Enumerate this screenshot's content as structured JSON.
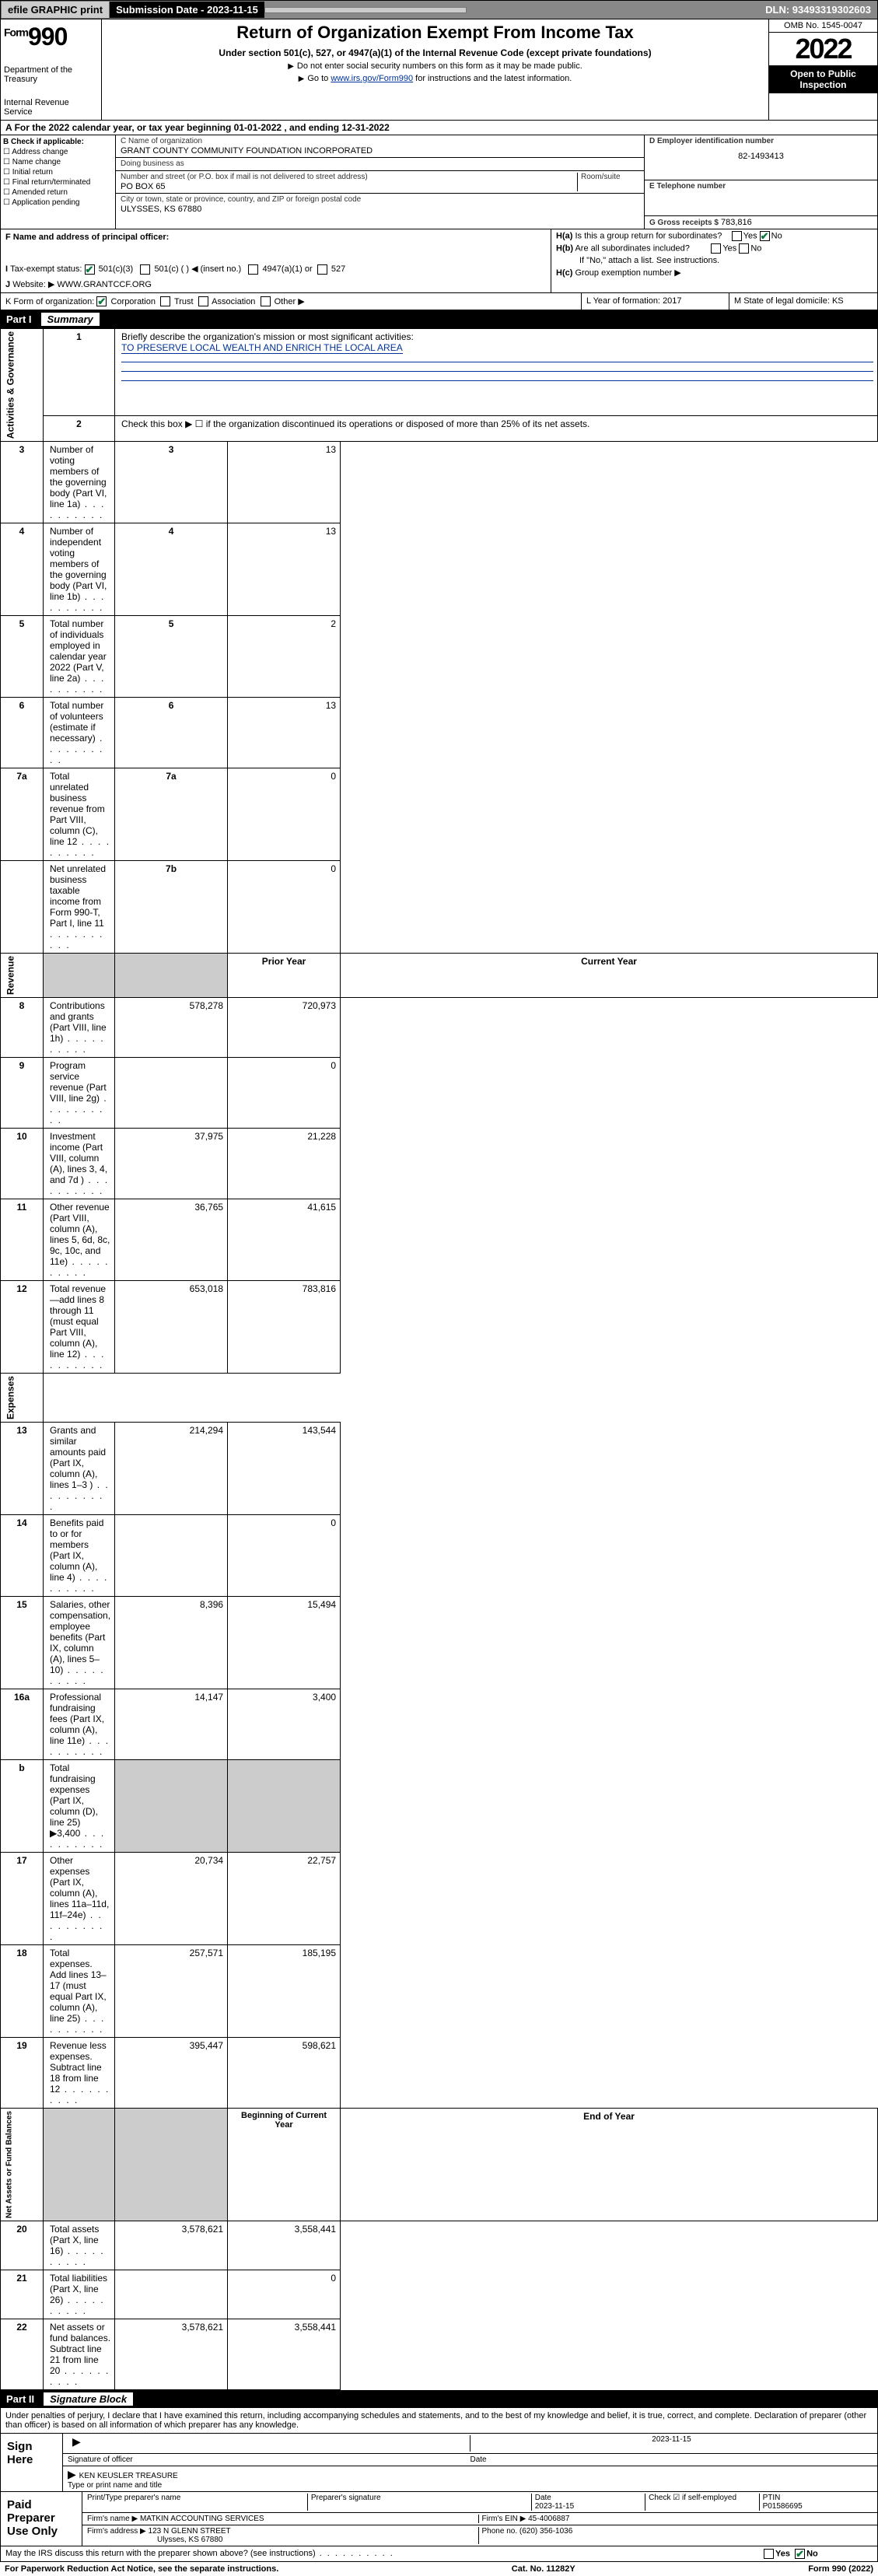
{
  "top": {
    "efile": "efile GRAPHIC print",
    "subDate": "Submission Date - 2023-11-15",
    "dln": "DLN: 93493319302603"
  },
  "header": {
    "formWord": "Form",
    "formNum": "990",
    "dept": "Department of the Treasury",
    "irs": "Internal Revenue Service",
    "title": "Return of Organization Exempt From Income Tax",
    "sub": "Under section 501(c), 527, or 4947(a)(1) of the Internal Revenue Code (except private foundations)",
    "note1": "Do not enter social security numbers on this form as it may be made public.",
    "note2a": "Go to ",
    "note2link": "www.irs.gov/Form990",
    "note2b": " for instructions and the latest information.",
    "omb": "OMB No. 1545-0047",
    "year": "2022",
    "open": "Open to Public Inspection"
  },
  "A": {
    "text": "For the 2022 calendar year, or tax year beginning 01-01-2022    , and ending 12-31-2022"
  },
  "B": {
    "hdr": "B Check if applicable:",
    "opts": [
      "Address change",
      "Name change",
      "Initial return",
      "Final return/terminated",
      "Amended return",
      "Application pending"
    ]
  },
  "C": {
    "nameLbl": "C Name of organization",
    "name": "GRANT COUNTY COMMUNITY FOUNDATION INCORPORATED",
    "dbaLbl": "Doing business as",
    "dba": "",
    "addrLbl": "Number and street (or P.O. box if mail is not delivered to street address)",
    "roomLbl": "Room/suite",
    "addr": "PO BOX 65",
    "cityLbl": "City or town, state or province, country, and ZIP or foreign postal code",
    "city": "ULYSSES, KS  67880"
  },
  "D": {
    "lbl": "D Employer identification number",
    "val": "82-1493413"
  },
  "E": {
    "lbl": "E Telephone number",
    "val": ""
  },
  "G": {
    "lbl": "G Gross receipts $",
    "val": "783,816"
  },
  "F": {
    "lbl": "F  Name and address of principal officer:",
    "val": ""
  },
  "H": {
    "a": "Is this a group return for subordinates?",
    "b": "Are all subordinates included?",
    "bnote": "If \"No,\" attach a list. See instructions.",
    "c": "Group exemption number ▶",
    "yes": "Yes",
    "no": "No"
  },
  "I": {
    "lbl": "Tax-exempt status:",
    "opts": [
      "501(c)(3)",
      "501(c) (  ) ◀ (insert no.)",
      "4947(a)(1) or",
      "527"
    ],
    "checked": 0
  },
  "J": {
    "lbl": "Website: ▶",
    "val": "WWW.GRANTCCF.ORG"
  },
  "K": {
    "lbl": "K Form of organization:",
    "opts": [
      "Corporation",
      "Trust",
      "Association",
      "Other ▶"
    ],
    "checked": 0
  },
  "L": {
    "lbl": "L Year of formation:",
    "val": "2017"
  },
  "M": {
    "lbl": "M State of legal domicile:",
    "val": "KS"
  },
  "partI": {
    "num": "Part I",
    "title": "Summary"
  },
  "s1": {
    "q1lbl": "Briefly describe the organization's mission or most significant activities:",
    "q1": "TO PRESERVE LOCAL WEALTH AND ENRICH THE LOCAL AREA",
    "q2": "Check this box ▶ ☐  if the organization discontinued its operations or disposed of more than 25% of its net assets.",
    "rows": [
      {
        "n": "3",
        "d": "Number of voting members of the governing body (Part VI, line 1a)",
        "a": "3",
        "v": "13"
      },
      {
        "n": "4",
        "d": "Number of independent voting members of the governing body (Part VI, line 1b)",
        "a": "4",
        "v": "13"
      },
      {
        "n": "5",
        "d": "Total number of individuals employed in calendar year 2022 (Part V, line 2a)",
        "a": "5",
        "v": "2"
      },
      {
        "n": "6",
        "d": "Total number of volunteers (estimate if necessary)",
        "a": "6",
        "v": "13"
      },
      {
        "n": "7a",
        "d": "Total unrelated business revenue from Part VIII, column (C), line 12",
        "a": "7a",
        "v": "0"
      },
      {
        "n": "",
        "d": "Net unrelated business taxable income from Form 990-T, Part I, line 11",
        "a": "7b",
        "v": "0"
      }
    ],
    "vert": "Activities & Governance"
  },
  "s2": {
    "hdrP": "Prior Year",
    "hdrC": "Current Year",
    "rows": [
      {
        "n": "8",
        "d": "Contributions and grants (Part VIII, line 1h)",
        "p": "578,278",
        "c": "720,973"
      },
      {
        "n": "9",
        "d": "Program service revenue (Part VIII, line 2g)",
        "p": "",
        "c": "0"
      },
      {
        "n": "10",
        "d": "Investment income (Part VIII, column (A), lines 3, 4, and 7d )",
        "p": "37,975",
        "c": "21,228"
      },
      {
        "n": "11",
        "d": "Other revenue (Part VIII, column (A), lines 5, 6d, 8c, 9c, 10c, and 11e)",
        "p": "36,765",
        "c": "41,615"
      },
      {
        "n": "12",
        "d": "Total revenue—add lines 8 through 11 (must equal Part VIII, column (A), line 12)",
        "p": "653,018",
        "c": "783,816"
      }
    ],
    "vert": "Revenue"
  },
  "s3": {
    "rows": [
      {
        "n": "13",
        "d": "Grants and similar amounts paid (Part IX, column (A), lines 1–3 )",
        "p": "214,294",
        "c": "143,544"
      },
      {
        "n": "14",
        "d": "Benefits paid to or for members (Part IX, column (A), line 4)",
        "p": "",
        "c": "0"
      },
      {
        "n": "15",
        "d": "Salaries, other compensation, employee benefits (Part IX, column (A), lines 5–10)",
        "p": "8,396",
        "c": "15,494"
      },
      {
        "n": "16a",
        "d": "Professional fundraising fees (Part IX, column (A), line 11e)",
        "p": "14,147",
        "c": "3,400"
      },
      {
        "n": "b",
        "d": "Total fundraising expenses (Part IX, column (D), line 25) ▶3,400",
        "p": "SHADE",
        "c": "SHADE"
      },
      {
        "n": "17",
        "d": "Other expenses (Part IX, column (A), lines 11a–11d, 11f–24e)",
        "p": "20,734",
        "c": "22,757"
      },
      {
        "n": "18",
        "d": "Total expenses. Add lines 13–17 (must equal Part IX, column (A), line 25)",
        "p": "257,571",
        "c": "185,195"
      },
      {
        "n": "19",
        "d": "Revenue less expenses. Subtract line 18 from line 12",
        "p": "395,447",
        "c": "598,621"
      }
    ],
    "vert": "Expenses"
  },
  "s4": {
    "hdrP": "Beginning of Current Year",
    "hdrC": "End of Year",
    "rows": [
      {
        "n": "20",
        "d": "Total assets (Part X, line 16)",
        "p": "3,578,621",
        "c": "3,558,441"
      },
      {
        "n": "21",
        "d": "Total liabilities (Part X, line 26)",
        "p": "",
        "c": "0"
      },
      {
        "n": "22",
        "d": "Net assets or fund balances. Subtract line 21 from line 20",
        "p": "3,578,621",
        "c": "3,558,441"
      }
    ],
    "vert": "Net Assets or Fund Balances"
  },
  "partII": {
    "num": "Part II",
    "title": "Signature Block"
  },
  "decl": "Under penalties of perjury, I declare that I have examined this return, including accompanying schedules and statements, and to the best of my knowledge and belief, it is true, correct, and complete. Declaration of preparer (other than officer) is based on all information of which preparer has any knowledge.",
  "sign": {
    "here": "Sign Here",
    "sigOf": "Signature of officer",
    "date": "Date",
    "dateVal": "2023-11-15",
    "name": "KEN KEUSLER  TREASURE",
    "nameLbl": "Type or print name and title"
  },
  "prep": {
    "title": "Paid Preparer Use Only",
    "c1": "Print/Type preparer's name",
    "c2": "Preparer's signature",
    "c3": "Date",
    "c3v": "2023-11-15",
    "c4": "Check ☑ if self-employed",
    "c5": "PTIN",
    "c5v": "P01586695",
    "firmLbl": "Firm's name   ▶",
    "firm": "MATKIN ACCOUNTING SERVICES",
    "einLbl": "Firm's EIN ▶",
    "ein": "45-4006887",
    "addrLbl": "Firm's address ▶",
    "addr": "123 N GLENN STREET",
    "addr2": "Ulysses, KS  67880",
    "phLbl": "Phone no.",
    "ph": "(620) 356-1036"
  },
  "may": "May the IRS discuss this return with the preparer shown above? (see instructions)",
  "foot": {
    "l": "For Paperwork Reduction Act Notice, see the separate instructions.",
    "m": "Cat. No. 11282Y",
    "r": "Form 990 (2022)"
  },
  "colors": {
    "link": "#003399",
    "check": "#0a7a3a"
  }
}
